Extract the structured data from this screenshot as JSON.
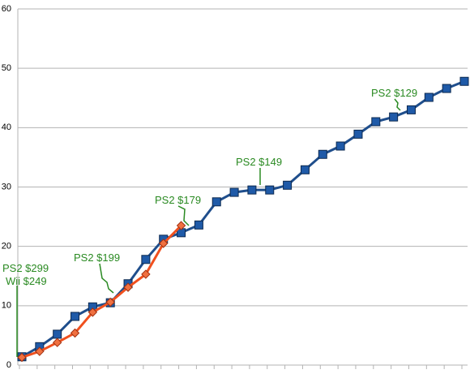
{
  "chart_data": {
    "type": "line",
    "categories": [
      null,
      null,
      null,
      null,
      null,
      null,
      null,
      null,
      null,
      null,
      null,
      null,
      null,
      null,
      null,
      null,
      null,
      null,
      null,
      null,
      null,
      null,
      null,
      null,
      null,
      null
    ],
    "series": [
      {
        "color": "#1f4e8c",
        "marker_color": "#1f5aa8",
        "marker": "square",
        "values": [
          1.4,
          3.1,
          5.2,
          8.2,
          9.8,
          10.5,
          13.7,
          17.8,
          21.2,
          22.3,
          23.6,
          27.5,
          29.1,
          29.5,
          29.5,
          30.3,
          32.9,
          35.5,
          36.9,
          38.9,
          41,
          41.8,
          43,
          45.1,
          46.6,
          47.8
        ]
      },
      {
        "color": "#f0501e",
        "marker_color": "#f07040",
        "marker": "diamond",
        "values": [
          1.3,
          2.3,
          3.8,
          5.4,
          8.9,
          10.6,
          13.1,
          15.3,
          20.5,
          23.5,
          null,
          null,
          null,
          null,
          null,
          null,
          null,
          null,
          null,
          null,
          null,
          null,
          null,
          null,
          null,
          null
        ]
      }
    ],
    "annotations": [
      "PS2 $299",
      "Wii $249",
      "PS2 $199",
      "PS2 $179",
      "PS2 $149",
      "PS2 $129"
    ],
    "ylim": [
      0,
      60
    ],
    "yticks": [
      0,
      10,
      20,
      30,
      40,
      50,
      60
    ],
    "grid": true
  }
}
